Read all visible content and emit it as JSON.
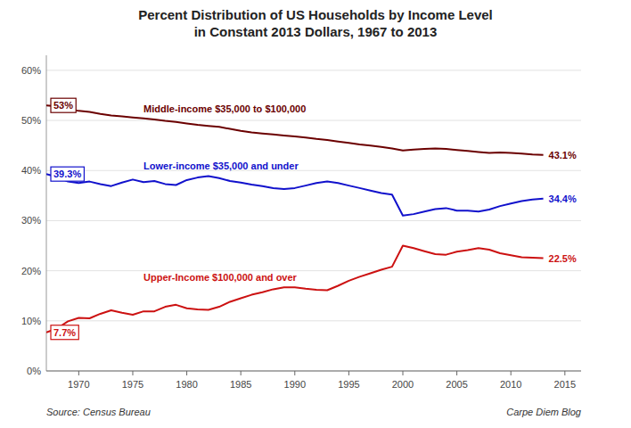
{
  "chart_data": {
    "type": "line",
    "title": "Percent Distribution of US Households by Income Level\nin Constant 2013 Dollars, 1967 to 2013",
    "annotations": [
      "Source: Census Bureau",
      "Carpe Diem Blog"
    ],
    "x": [
      1967,
      1968,
      1969,
      1970,
      1971,
      1972,
      1973,
      1974,
      1975,
      1976,
      1977,
      1978,
      1979,
      1980,
      1981,
      1982,
      1983,
      1984,
      1985,
      1986,
      1987,
      1988,
      1989,
      1990,
      1991,
      1992,
      1993,
      1994,
      1995,
      1996,
      1997,
      1998,
      1999,
      2000,
      2001,
      2002,
      2003,
      2004,
      2005,
      2006,
      2007,
      2008,
      2009,
      2010,
      2011,
      2012,
      2013
    ],
    "series": [
      {
        "name": "Middle-income $35,000 to $100,000",
        "color": "#6B0000",
        "values": [
          53.0,
          52.8,
          52.3,
          51.9,
          51.7,
          51.3,
          51.0,
          50.8,
          50.6,
          50.4,
          50.2,
          49.9,
          49.7,
          49.4,
          49.1,
          48.9,
          48.7,
          48.3,
          47.9,
          47.6,
          47.4,
          47.2,
          47.0,
          46.8,
          46.6,
          46.3,
          46.1,
          45.8,
          45.5,
          45.2,
          45.0,
          44.7,
          44.4,
          44.0,
          44.2,
          44.3,
          44.4,
          44.3,
          44.1,
          43.9,
          43.7,
          43.5,
          43.6,
          43.5,
          43.4,
          43.2,
          43.1
        ],
        "value_labels": [
          "53%",
          null,
          null,
          null,
          null,
          null,
          null,
          null,
          null,
          null,
          null,
          null,
          null,
          null,
          null,
          null,
          null,
          null,
          null,
          null,
          null,
          null,
          null,
          null,
          null,
          null,
          null,
          null,
          null,
          null,
          null,
          null,
          null,
          null,
          null,
          null,
          null,
          null,
          null,
          null,
          null,
          null,
          null,
          null,
          null,
          null,
          "43.1%"
        ]
      },
      {
        "name": "Lower-income $35,000 and under",
        "color": "#1111CC",
        "values": [
          39.3,
          38.7,
          37.8,
          37.5,
          37.8,
          37.3,
          36.9,
          37.6,
          38.2,
          37.7,
          37.9,
          37.3,
          37.1,
          38.1,
          38.6,
          38.9,
          38.5,
          37.9,
          37.6,
          37.2,
          36.9,
          36.5,
          36.3,
          36.5,
          37.0,
          37.5,
          37.8,
          37.5,
          37.0,
          36.5,
          36.0,
          35.5,
          35.2,
          31.0,
          31.3,
          31.8,
          32.3,
          32.5,
          32.0,
          32.0,
          31.8,
          32.2,
          32.9,
          33.4,
          33.9,
          34.2,
          34.4
        ],
        "value_labels": [
          "39.3%",
          null,
          null,
          null,
          null,
          null,
          null,
          null,
          null,
          null,
          null,
          null,
          null,
          null,
          null,
          null,
          null,
          null,
          null,
          null,
          null,
          null,
          null,
          null,
          null,
          null,
          null,
          null,
          null,
          null,
          null,
          null,
          null,
          null,
          null,
          null,
          null,
          null,
          null,
          null,
          null,
          null,
          null,
          null,
          null,
          null,
          "34.4%"
        ]
      },
      {
        "name": "Upper-Income $100,000 and over",
        "color": "#CC1111",
        "values": [
          7.7,
          8.5,
          9.9,
          10.6,
          10.5,
          11.4,
          12.1,
          11.6,
          11.2,
          11.9,
          11.9,
          12.8,
          13.2,
          12.5,
          12.3,
          12.2,
          12.8,
          13.8,
          14.5,
          15.2,
          15.7,
          16.3,
          16.7,
          16.7,
          16.4,
          16.2,
          16.1,
          17.0,
          18.0,
          18.8,
          19.5,
          20.2,
          20.8,
          25.0,
          24.5,
          23.9,
          23.3,
          23.2,
          23.8,
          24.1,
          24.5,
          24.2,
          23.5,
          23.1,
          22.7,
          22.6,
          22.5
        ],
        "value_labels": [
          "7.7%",
          null,
          null,
          null,
          null,
          null,
          null,
          null,
          null,
          null,
          null,
          null,
          null,
          null,
          null,
          null,
          null,
          null,
          null,
          null,
          null,
          null,
          null,
          null,
          null,
          null,
          null,
          null,
          null,
          null,
          null,
          null,
          null,
          null,
          null,
          null,
          null,
          null,
          null,
          null,
          null,
          null,
          null,
          null,
          null,
          null,
          "22.5%"
        ]
      }
    ],
    "xlim": [
      1967,
      2016.5
    ],
    "ylim": [
      0,
      63
    ],
    "xticks": [
      1970,
      1975,
      1980,
      1985,
      1990,
      1995,
      2000,
      2005,
      2010,
      2015
    ],
    "yticks": [
      {
        "value": 0,
        "label": "0%"
      },
      {
        "value": 10,
        "label": "10%"
      },
      {
        "value": 20,
        "label": "20%"
      },
      {
        "value": 30,
        "label": "30%"
      },
      {
        "value": 40,
        "label": "40%"
      },
      {
        "value": 50,
        "label": "50%"
      },
      {
        "value": 60,
        "label": "60%"
      }
    ],
    "grid": true
  }
}
